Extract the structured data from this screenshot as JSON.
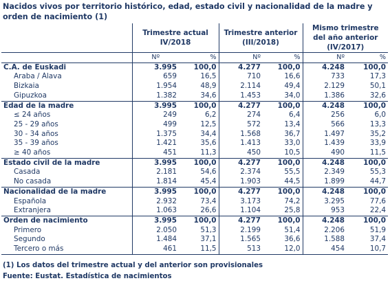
{
  "title": "Nacidos vivos por territorio histórico, edad, estado civil y nacionalidad de la madre y orden de nacimiento (1)",
  "headers": {
    "g1": "Trimestre actual IV/2018",
    "g2a": "Trimestre anterior",
    "g2b": "(III/2018)",
    "g3": "Mismo trimestre del año anterior (IV/2017)",
    "n": "Nº",
    "pct": "%"
  },
  "sections": [
    {
      "label": "C.A. de Euskadi",
      "vals": [
        "3.995",
        "100,0",
        "4.277",
        "100,0",
        "4.248",
        "100,0"
      ],
      "rows": [
        {
          "label": "Araba / Álava",
          "vals": [
            "659",
            "16,5",
            "710",
            "16,6",
            "733",
            "17,3"
          ]
        },
        {
          "label": "Bizkaia",
          "vals": [
            "1.954",
            "48,9",
            "2.114",
            "49,4",
            "2.129",
            "50,1"
          ]
        },
        {
          "label": "Gipuzkoa",
          "vals": [
            "1.382",
            "34,6",
            "1.453",
            "34,0",
            "1.386",
            "32,6"
          ]
        }
      ]
    },
    {
      "label": "Edad de la madre",
      "vals": [
        "3.995",
        "100,0",
        "4.277",
        "100,0",
        "4.248",
        "100,0"
      ],
      "rows": [
        {
          "label": "≤ 24 años",
          "vals": [
            "249",
            "6,2",
            "274",
            "6,4",
            "256",
            "6,0"
          ]
        },
        {
          "label": "25 - 29 años",
          "vals": [
            "499",
            "12,5",
            "572",
            "13,4",
            "566",
            "13,3"
          ]
        },
        {
          "label": "30 - 34 años",
          "vals": [
            "1.375",
            "34,4",
            "1.568",
            "36,7",
            "1.497",
            "35,2"
          ]
        },
        {
          "label": "35 - 39 años",
          "vals": [
            "1.421",
            "35,6",
            "1.413",
            "33,0",
            "1.439",
            "33,9"
          ]
        },
        {
          "label": "≥ 40 años",
          "vals": [
            "451",
            "11,3",
            "450",
            "10,5",
            "490",
            "11,5"
          ]
        }
      ]
    },
    {
      "label": "Estado civil de la madre",
      "vals": [
        "3.995",
        "100,0",
        "4.277",
        "100,0",
        "4.248",
        "100,0"
      ],
      "rows": [
        {
          "label": "Casada",
          "vals": [
            "2.181",
            "54,6",
            "2.374",
            "55,5",
            "2.349",
            "55,3"
          ]
        },
        {
          "label": "No casada",
          "vals": [
            "1.814",
            "45,4",
            "1.903",
            "44,5",
            "1.899",
            "44,7"
          ]
        }
      ]
    },
    {
      "label": "Nacionalidad de la madre",
      "vals": [
        "3.995",
        "100,0",
        "4.277",
        "100,0",
        "4.248",
        "100,0"
      ],
      "rows": [
        {
          "label": "Española",
          "vals": [
            "2.932",
            "73,4",
            "3.173",
            "74,2",
            "3.295",
            "77,6"
          ]
        },
        {
          "label": "Extranjera",
          "vals": [
            "1.063",
            "26,6",
            "1.104",
            "25,8",
            "953",
            "22,4"
          ]
        }
      ]
    },
    {
      "label": "Orden de nacimiento",
      "vals": [
        "3.995",
        "100,0",
        "4.277",
        "100,0",
        "4.248",
        "100,0"
      ],
      "rows": [
        {
          "label": "Primero",
          "vals": [
            "2.050",
            "51,3",
            "2.199",
            "51,4",
            "2.206",
            "51,9"
          ]
        },
        {
          "label": "Segundo",
          "vals": [
            "1.484",
            "37,1",
            "1.565",
            "36,6",
            "1.588",
            "37,4"
          ]
        },
        {
          "label": "Tercero o más",
          "vals": [
            "461",
            "11,5",
            "513",
            "12,0",
            "454",
            "10,7"
          ]
        }
      ]
    }
  ],
  "footnote": "(1) Los datos del trimestre actual y del anterior son provisionales",
  "source": "Fuente: Eustat. Estadística de nacimientos"
}
